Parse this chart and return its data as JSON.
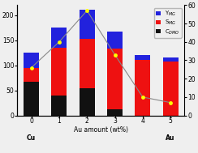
{
  "x_positions": [
    0,
    1,
    2,
    3,
    4,
    5
  ],
  "xlabel": "Au amount (wt%)",
  "ylim_left": [
    0,
    220
  ],
  "ylim_right": [
    0,
    60
  ],
  "yticks_left": [
    0,
    50,
    100,
    150,
    200
  ],
  "yticks_right": [
    0,
    10,
    20,
    30,
    40,
    50,
    60
  ],
  "C_DMO": [
    67,
    40,
    55,
    13,
    0,
    0
  ],
  "S_MG_h": [
    27,
    95,
    98,
    120,
    110,
    107
  ],
  "Y_MG_h": [
    32,
    40,
    58,
    35,
    10,
    8
  ],
  "line_y": [
    26,
    40,
    57,
    33,
    10,
    7
  ],
  "bar_color_C": "#111111",
  "bar_color_S": "#ee1111",
  "bar_color_Y": "#2222dd",
  "line_color": "#888888",
  "marker_color": "#ffff00",
  "bar_width": 0.55,
  "legend_colors": [
    "#2222dd",
    "#ee1111",
    "#111111"
  ],
  "background_color": "#efefef"
}
